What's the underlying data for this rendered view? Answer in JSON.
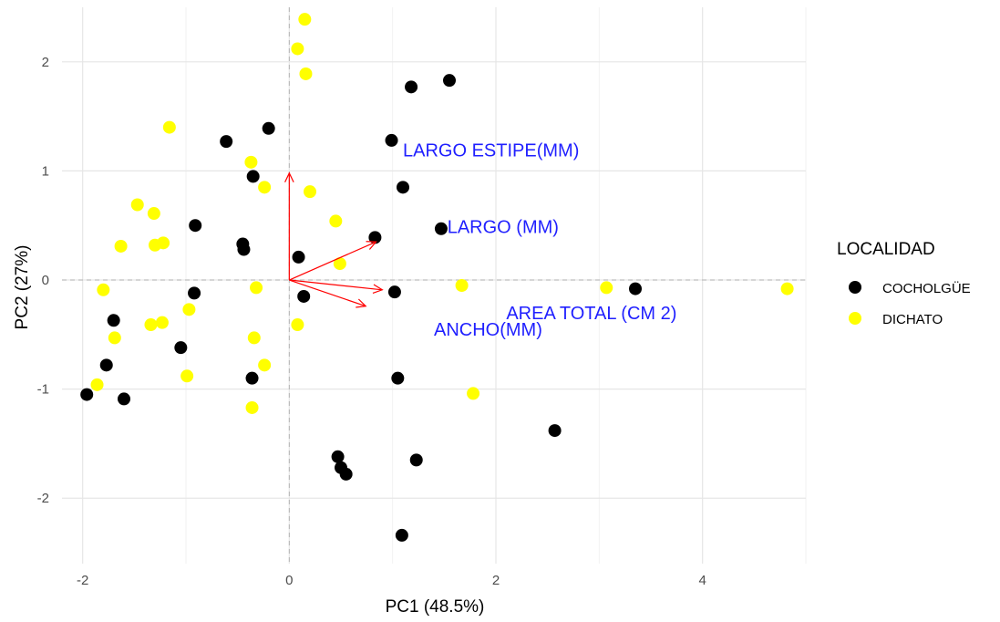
{
  "chart_data": {
    "type": "scatter",
    "xlabel": "PC1 (48.5%)",
    "ylabel": "PC2 (27%)",
    "xlim": [
      -2.2,
      5.0
    ],
    "ylim": [
      -2.6,
      2.5
    ],
    "xticks": [
      -2,
      0,
      2,
      4
    ],
    "yticks": [
      -2,
      -1,
      0,
      1,
      2
    ],
    "grid": true,
    "legend": {
      "title": "LOCALIDAD",
      "position": "right"
    },
    "series": [
      {
        "name": "COCHOLGÜE",
        "color": "#000000",
        "points": [
          [
            1.55,
            1.83
          ],
          [
            1.18,
            1.77
          ],
          [
            0.99,
            1.28
          ],
          [
            -0.2,
            1.39
          ],
          [
            -0.61,
            1.27
          ],
          [
            1.1,
            0.85
          ],
          [
            -0.35,
            0.95
          ],
          [
            -0.91,
            0.5
          ],
          [
            -0.45,
            0.33
          ],
          [
            -0.44,
            0.28
          ],
          [
            0.83,
            0.39
          ],
          [
            0.09,
            0.21
          ],
          [
            1.47,
            0.47
          ],
          [
            -0.92,
            -0.12
          ],
          [
            1.02,
            -0.11
          ],
          [
            3.35,
            -0.08
          ],
          [
            0.14,
            -0.15
          ],
          [
            -1.7,
            -0.37
          ],
          [
            -1.05,
            -0.62
          ],
          [
            -1.77,
            -0.78
          ],
          [
            -0.36,
            -0.9
          ],
          [
            1.05,
            -0.9
          ],
          [
            -1.96,
            -1.05
          ],
          [
            -1.6,
            -1.09
          ],
          [
            2.57,
            -1.38
          ],
          [
            0.47,
            -1.62
          ],
          [
            0.5,
            -1.72
          ],
          [
            1.23,
            -1.65
          ],
          [
            0.55,
            -1.78
          ],
          [
            1.09,
            -2.34
          ]
        ]
      },
      {
        "name": "DICHATO",
        "color": "#ffff00",
        "points": [
          [
            0.15,
            2.39
          ],
          [
            0.08,
            2.12
          ],
          [
            0.16,
            1.89
          ],
          [
            -1.16,
            1.4
          ],
          [
            -0.37,
            1.08
          ],
          [
            -0.24,
            0.85
          ],
          [
            0.2,
            0.81
          ],
          [
            -1.47,
            0.69
          ],
          [
            -1.31,
            0.61
          ],
          [
            0.45,
            0.54
          ],
          [
            -1.63,
            0.31
          ],
          [
            -1.3,
            0.32
          ],
          [
            -1.22,
            0.34
          ],
          [
            0.49,
            0.15
          ],
          [
            -1.8,
            -0.09
          ],
          [
            -0.32,
            -0.07
          ],
          [
            1.67,
            -0.05
          ],
          [
            3.07,
            -0.07
          ],
          [
            4.82,
            -0.08
          ],
          [
            -0.97,
            -0.27
          ],
          [
            -1.34,
            -0.41
          ],
          [
            -1.23,
            -0.39
          ],
          [
            0.08,
            -0.41
          ],
          [
            -1.69,
            -0.53
          ],
          [
            -0.34,
            -0.53
          ],
          [
            -0.24,
            -0.78
          ],
          [
            -0.99,
            -0.88
          ],
          [
            -1.86,
            -0.96
          ],
          [
            1.78,
            -1.04
          ],
          [
            -0.36,
            -1.17
          ]
        ]
      }
    ],
    "loadings": [
      {
        "name": "LARGO ESTIPE(MM)",
        "x": 0.0,
        "y": 0.98,
        "label_x": 1.1,
        "label_y": 1.19
      },
      {
        "name": "LARGO (MM)",
        "x": 0.84,
        "y": 0.35,
        "label_x": 1.53,
        "label_y": 0.49
      },
      {
        "name": "AREA TOTAL (CM 2)",
        "x": 0.9,
        "y": -0.09,
        "label_x": 2.1,
        "label_y": -0.3
      },
      {
        "name": "ANCHO(MM)",
        "x": 0.74,
        "y": -0.24,
        "label_x": 1.4,
        "label_y": -0.45
      }
    ],
    "loading_color": "#ff0000",
    "loading_label_color": "#1f1fff"
  }
}
